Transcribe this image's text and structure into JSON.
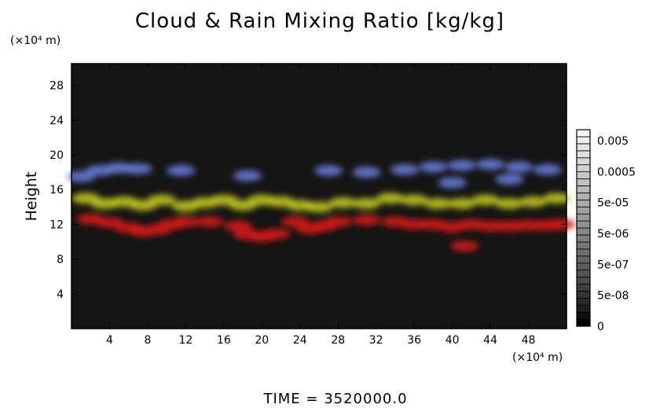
{
  "title": "Cloud & Rain Mixing Ratio [kg/kg]",
  "y_unit": "(×10⁴ m)",
  "x_unit": "(×10⁴ m)",
  "time_label": "TIME",
  "time_value": "3520000.0",
  "chart_data": {
    "type": "heatmap",
    "title": "Cloud & Rain Mixing Ratio [kg/kg]",
    "xlabel": "",
    "ylabel": "Height",
    "xlim": [
      0,
      52
    ],
    "ylim": [
      0,
      30.5
    ],
    "x_ticks": [
      4,
      8,
      12,
      16,
      20,
      24,
      28,
      32,
      36,
      40,
      44,
      48
    ],
    "y_ticks": [
      4,
      8,
      12,
      16,
      20,
      24,
      28
    ],
    "background_color": "#151515",
    "layers": [
      {
        "color": "#d81818",
        "blobs": [
          {
            "x": 2,
            "y": 12.6
          },
          {
            "x": 4,
            "y": 12.2
          },
          {
            "x": 6,
            "y": 11.6
          },
          {
            "x": 7.5,
            "y": 11.2
          },
          {
            "x": 9,
            "y": 11.4
          },
          {
            "x": 10.5,
            "y": 12.0
          },
          {
            "x": 12,
            "y": 12.3
          },
          {
            "x": 14.5,
            "y": 12.3
          },
          {
            "x": 17.5,
            "y": 11.8
          },
          {
            "x": 18.5,
            "y": 10.8
          },
          {
            "x": 20,
            "y": 10.6
          },
          {
            "x": 21.5,
            "y": 10.9
          },
          {
            "x": 23.5,
            "y": 12.3
          },
          {
            "x": 25,
            "y": 11.5
          },
          {
            "x": 26.5,
            "y": 11.8
          },
          {
            "x": 28,
            "y": 12.3
          },
          {
            "x": 31,
            "y": 12.5
          },
          {
            "x": 34,
            "y": 12.3
          },
          {
            "x": 36,
            "y": 12.0
          },
          {
            "x": 38,
            "y": 12.0
          },
          {
            "x": 40,
            "y": 11.7
          },
          {
            "x": 42,
            "y": 12.0
          },
          {
            "x": 44,
            "y": 11.8
          },
          {
            "x": 46,
            "y": 11.8
          },
          {
            "x": 48,
            "y": 11.9
          },
          {
            "x": 50,
            "y": 11.9
          },
          {
            "x": 51.5,
            "y": 12.0
          },
          {
            "x": 41.3,
            "y": 9.5
          }
        ]
      },
      {
        "color": "#c8cc1e",
        "blobs": [
          {
            "x": 1.5,
            "y": 15.0
          },
          {
            "x": 3.5,
            "y": 14.4
          },
          {
            "x": 5.5,
            "y": 14.6
          },
          {
            "x": 7.5,
            "y": 14.2
          },
          {
            "x": 9.5,
            "y": 14.8
          },
          {
            "x": 12,
            "y": 14.1
          },
          {
            "x": 14,
            "y": 14.5
          },
          {
            "x": 16,
            "y": 14.8
          },
          {
            "x": 18,
            "y": 14.2
          },
          {
            "x": 20,
            "y": 14.8
          },
          {
            "x": 22,
            "y": 14.6
          },
          {
            "x": 24,
            "y": 14.2
          },
          {
            "x": 26,
            "y": 14.0
          },
          {
            "x": 28.5,
            "y": 14.5
          },
          {
            "x": 31,
            "y": 14.4
          },
          {
            "x": 33.5,
            "y": 15.0
          },
          {
            "x": 36,
            "y": 14.8
          },
          {
            "x": 38.5,
            "y": 14.4
          },
          {
            "x": 41,
            "y": 14.4
          },
          {
            "x": 43.5,
            "y": 14.8
          },
          {
            "x": 46,
            "y": 14.4
          },
          {
            "x": 48.5,
            "y": 14.6
          },
          {
            "x": 51,
            "y": 15.0
          }
        ]
      },
      {
        "color": "#6b7fe0",
        "blobs": [
          {
            "x": 1,
            "y": 17.5
          },
          {
            "x": 3,
            "y": 18.2
          },
          {
            "x": 5,
            "y": 18.5
          },
          {
            "x": 7,
            "y": 18.4
          },
          {
            "x": 11.5,
            "y": 18.2
          },
          {
            "x": 18.5,
            "y": 17.6
          },
          {
            "x": 27,
            "y": 18.2
          },
          {
            "x": 31,
            "y": 18.0
          },
          {
            "x": 35,
            "y": 18.3
          },
          {
            "x": 38,
            "y": 18.6
          },
          {
            "x": 41,
            "y": 18.8
          },
          {
            "x": 44,
            "y": 18.9
          },
          {
            "x": 47,
            "y": 18.6
          },
          {
            "x": 50,
            "y": 18.3
          },
          {
            "x": 40,
            "y": 16.8
          },
          {
            "x": 46,
            "y": 17.2
          }
        ]
      }
    ],
    "colorbar": {
      "labels": [
        "0.005",
        "0.0005",
        "5e-05",
        "5e-06",
        "5e-07",
        "5e-08",
        "0"
      ],
      "levels": 28,
      "min_color": "#000000",
      "max_color": "#f4f4f4"
    }
  }
}
